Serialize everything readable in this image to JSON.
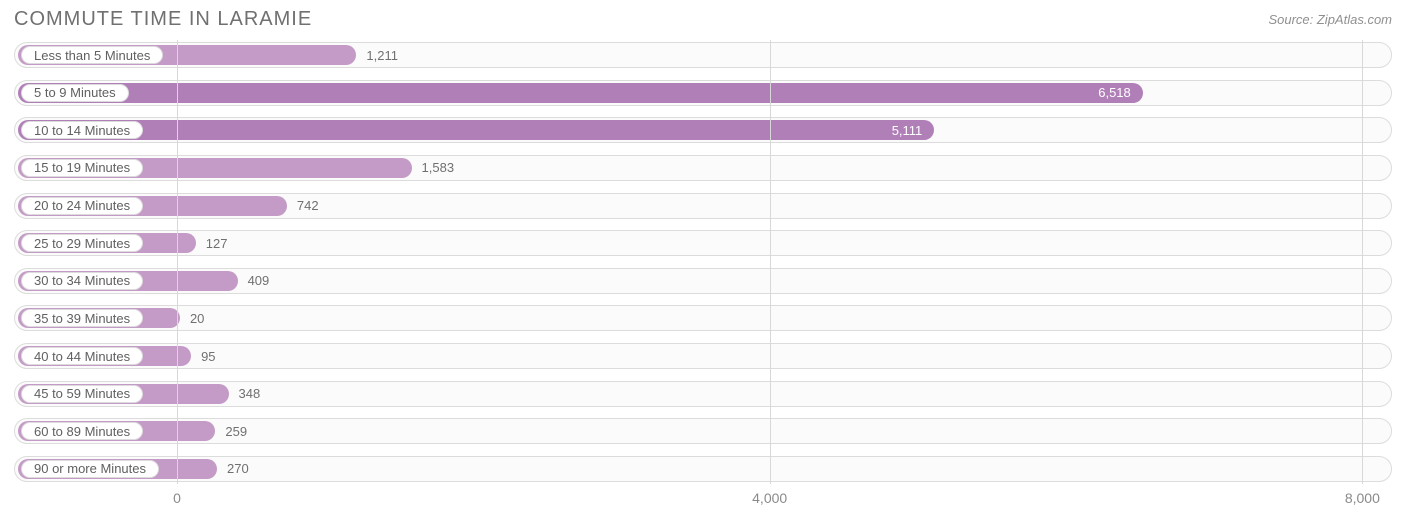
{
  "title": "COMMUTE TIME IN LARAMIE",
  "source": "Source: ZipAtlas.com",
  "chart": {
    "type": "bar-horizontal",
    "bar_color": "#c49bc6",
    "bar_color_dark": "#b07fb8",
    "track_border": "#dcdcdc",
    "track_bg": "#fbfbfb",
    "grid_color": "#d8d8d8",
    "background_color": "#ffffff",
    "text_color": "#606060",
    "value_outside_color": "#707070",
    "value_inside_color": "#ffffff",
    "title_color": "#707070",
    "title_fontsize": 20,
    "label_fontsize": 13,
    "tick_fontsize": 14,
    "x_min": -1100,
    "x_max": 8200,
    "x_ticks": [
      0,
      4000,
      8000
    ],
    "x_tick_labels": [
      "0",
      "4,000",
      "8,000"
    ],
    "value_inside_threshold": 4000,
    "categories": [
      "Less than 5 Minutes",
      "5 to 9 Minutes",
      "10 to 14 Minutes",
      "15 to 19 Minutes",
      "20 to 24 Minutes",
      "25 to 29 Minutes",
      "30 to 34 Minutes",
      "35 to 39 Minutes",
      "40 to 44 Minutes",
      "45 to 59 Minutes",
      "60 to 89 Minutes",
      "90 or more Minutes"
    ],
    "values": [
      1211,
      6518,
      5111,
      1583,
      742,
      127,
      409,
      20,
      95,
      348,
      259,
      270
    ],
    "value_labels": [
      "1,211",
      "6,518",
      "5,111",
      "1,583",
      "742",
      "127",
      "409",
      "20",
      "95",
      "348",
      "259",
      "270"
    ]
  }
}
